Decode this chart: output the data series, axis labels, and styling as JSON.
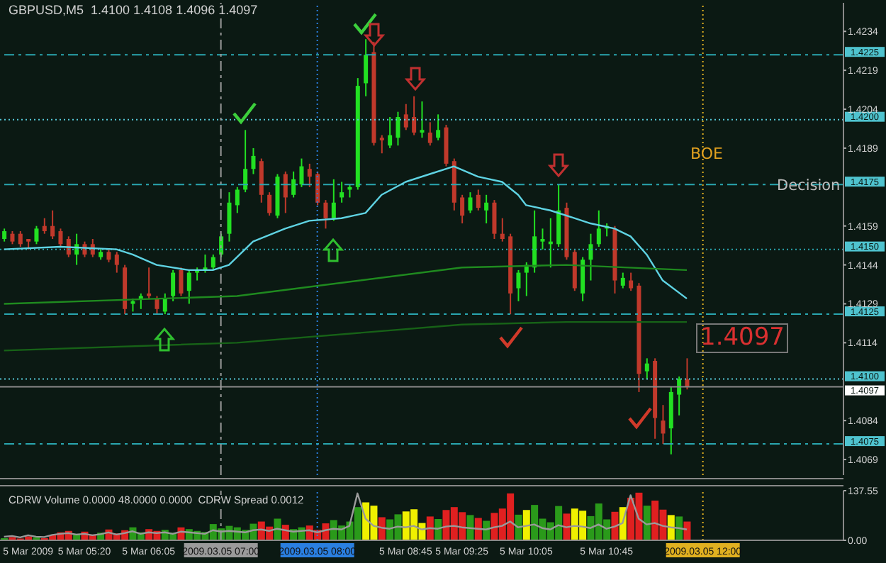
{
  "chart_data": [
    {
      "type": "candlestick",
      "title": "GBPUSD,M5  1.4100 1.4108 1.4096 1.4097",
      "categories": [
        null,
        null,
        null,
        "5 Mar 2009",
        null,
        null,
        null,
        null,
        null,
        null,
        "5 Mar 05:20",
        null,
        null,
        null,
        null,
        null,
        null,
        null,
        "5 Mar 06:05",
        null,
        null,
        null,
        null,
        null,
        null,
        null,
        null,
        "2009.03.05 07:00",
        null,
        null,
        null,
        null,
        null,
        null,
        null,
        null,
        null,
        null,
        null,
        "2009.03.05 08:00",
        null,
        null,
        null,
        null,
        null,
        null,
        null,
        null,
        null,
        null,
        "5 Mar 08:45",
        null,
        null,
        null,
        null,
        null,
        null,
        "5 Mar 09:25",
        null,
        null,
        null,
        null,
        null,
        null,
        null,
        "5 Mar 10:05",
        null,
        null,
        null,
        null,
        null,
        null,
        null,
        null,
        null,
        "5 Mar 10:45",
        null,
        null,
        null,
        null,
        null,
        null,
        null,
        null,
        null,
        null,
        null,
        "2009.03.05 12:00",
        null,
        null,
        null,
        null,
        null,
        null,
        null,
        null,
        null,
        null,
        null,
        null,
        null,
        null,
        null,
        null,
        null
      ],
      "ohlc": [
        [
          1.4154,
          1.4158,
          1.4153,
          1.4157
        ],
        [
          1.4156,
          1.4157,
          1.4152,
          1.4153
        ],
        [
          1.4156,
          1.4157,
          1.4151,
          1.4152
        ],
        [
          1.4154,
          1.4154,
          1.415,
          1.4153
        ],
        [
          1.4153,
          1.4159,
          1.4152,
          1.4158
        ],
        [
          1.4159,
          1.4162,
          1.4156,
          1.4157
        ],
        [
          1.4159,
          1.4165,
          1.4154,
          1.4155
        ],
        [
          1.4157,
          1.4158,
          1.4151,
          1.4152
        ],
        [
          1.4154,
          1.4155,
          1.4147,
          1.4148
        ],
        [
          1.4148,
          1.4156,
          1.4144,
          1.4152
        ],
        [
          1.4152,
          1.4153,
          1.4147,
          1.4148
        ],
        [
          1.4152,
          1.4154,
          1.4147,
          1.4148
        ],
        [
          1.4147,
          1.415,
          1.4146,
          1.4149
        ],
        [
          1.4149,
          1.415,
          1.4145,
          1.4146
        ],
        [
          1.4148,
          1.4149,
          1.4141,
          1.4144
        ],
        [
          1.4143,
          1.4144,
          1.4125,
          1.4127
        ],
        [
          1.4129,
          1.4131,
          1.4126,
          1.413
        ],
        [
          1.4131,
          1.4133,
          1.4127,
          1.4132
        ],
        [
          1.4133,
          1.4143,
          1.4131,
          1.4132
        ],
        [
          1.4131,
          1.4132,
          1.4125,
          1.4127
        ],
        [
          1.4126,
          1.4133,
          1.4125,
          1.4131
        ],
        [
          1.4132,
          1.4142,
          1.413,
          1.4141
        ],
        [
          1.4142,
          1.4143,
          1.4132,
          1.4133
        ],
        [
          1.4134,
          1.4142,
          1.4129,
          1.4141
        ],
        [
          1.4141,
          1.4143,
          1.4138,
          1.4142
        ],
        [
          1.4142,
          1.4148,
          1.4141,
          1.4143
        ],
        [
          1.4143,
          1.4148,
          1.4142,
          1.4147
        ],
        [
          1.4148,
          1.4156,
          1.4147,
          1.4155
        ],
        [
          1.4156,
          1.4172,
          1.4153,
          1.4168
        ],
        [
          1.4167,
          1.4174,
          1.4164,
          1.4173
        ],
        [
          1.4173,
          1.4196,
          1.4172,
          1.4181
        ],
        [
          1.4181,
          1.4189,
          1.4179,
          1.4186
        ],
        [
          1.4184,
          1.4185,
          1.4168,
          1.4171
        ],
        [
          1.4171,
          1.4172,
          1.4163,
          1.4164
        ],
        [
          1.4163,
          1.4179,
          1.4162,
          1.4178
        ],
        [
          1.4179,
          1.418,
          1.4164,
          1.417
        ],
        [
          1.4171,
          1.418,
          1.417,
          1.4177
        ],
        [
          1.4175,
          1.4185,
          1.4174,
          1.4182
        ],
        [
          1.4181,
          1.4183,
          1.4174,
          1.4178
        ],
        [
          1.4179,
          1.418,
          1.4167,
          1.4168
        ],
        [
          1.4168,
          1.4169,
          1.4158,
          1.4162
        ],
        [
          1.4162,
          1.4177,
          1.4161,
          1.4168
        ],
        [
          1.417,
          1.4176,
          1.4168,
          1.4172
        ],
        [
          1.4173,
          1.4175,
          1.417,
          1.4174
        ],
        [
          1.4174,
          1.4216,
          1.4173,
          1.4213
        ],
        [
          1.4214,
          1.4231,
          1.4209,
          1.4225
        ],
        [
          1.4226,
          1.423,
          1.419,
          1.4191
        ],
        [
          1.4193,
          1.4194,
          1.4187,
          1.4192
        ],
        [
          1.419,
          1.4201,
          1.4189,
          1.4194
        ],
        [
          1.4193,
          1.4203,
          1.419,
          1.4201
        ],
        [
          1.4202,
          1.4206,
          1.4196,
          1.4197
        ],
        [
          1.4201,
          1.4209,
          1.4194,
          1.4195
        ],
        [
          1.4195,
          1.4207,
          1.4193,
          1.4196
        ],
        [
          1.4195,
          1.4199,
          1.419,
          1.4191
        ],
        [
          1.4193,
          1.4202,
          1.4192,
          1.4196
        ],
        [
          1.4197,
          1.4198,
          1.4182,
          1.4183
        ],
        [
          1.4184,
          1.4185,
          1.4165,
          1.4168
        ],
        [
          1.417,
          1.4171,
          1.416,
          1.4163
        ],
        [
          1.4165,
          1.4172,
          1.4164,
          1.417
        ],
        [
          1.4171,
          1.4173,
          1.4165,
          1.4166
        ],
        [
          1.4165,
          1.4171,
          1.416,
          1.4168
        ],
        [
          1.4168,
          1.4169,
          1.4154,
          1.4156
        ],
        [
          1.4156,
          1.4162,
          1.4153,
          1.4154
        ],
        [
          1.4155,
          1.4156,
          1.4125,
          1.4133
        ],
        [
          1.4135,
          1.4142,
          1.413,
          1.4141
        ],
        [
          1.4141,
          1.4145,
          1.4132,
          1.4144
        ],
        [
          1.4143,
          1.4165,
          1.4141,
          1.4155
        ],
        [
          1.4153,
          1.4158,
          1.415,
          1.4154
        ],
        [
          1.4152,
          1.4162,
          1.4143,
          1.4153
        ],
        [
          1.4152,
          1.4175,
          1.4151,
          1.4165
        ],
        [
          1.4166,
          1.4168,
          1.4146,
          1.4147
        ],
        [
          1.4149,
          1.415,
          1.4134,
          1.4135
        ],
        [
          1.4133,
          1.4147,
          1.413,
          1.4146
        ],
        [
          1.4146,
          1.4156,
          1.4138,
          1.4152
        ],
        [
          1.4152,
          1.4165,
          1.4151,
          1.4158
        ],
        [
          1.4158,
          1.416,
          1.4155,
          1.4159
        ],
        [
          1.4158,
          1.4159,
          1.4133,
          1.4138
        ],
        [
          1.4136,
          1.4141,
          1.4135,
          1.4139
        ],
        [
          1.4138,
          1.4141,
          1.4134,
          1.4135
        ],
        [
          1.4136,
          1.4137,
          1.4095,
          1.4102
        ],
        [
          1.4103,
          1.4108,
          1.41,
          1.4106
        ],
        [
          1.4107,
          1.4108,
          1.4077,
          1.4085
        ],
        [
          1.4084,
          1.409,
          1.4075,
          1.4079
        ],
        [
          1.4081,
          1.4097,
          1.4071,
          1.4095
        ],
        [
          1.4094,
          1.4101,
          1.4086,
          1.41
        ],
        [
          1.41,
          1.4108,
          1.4096,
          1.4097
        ],
        null,
        null,
        null,
        null,
        null,
        null,
        null,
        null,
        null,
        null,
        null,
        null,
        null,
        null,
        null,
        null,
        null,
        null,
        null
      ],
      "colors": [
        "#22e022",
        "#c0392b",
        "#c0392b",
        "#c0392b",
        "#22e022",
        "#c0392b",
        "#c0392b",
        "#c0392b",
        "#c0392b",
        "#22e022",
        "#c0392b",
        "#c0392b",
        "#22e022",
        "#c0392b",
        "#c0392b",
        "#c0392b",
        "#22e022",
        "#22e022",
        "#c0392b",
        "#c0392b",
        "#22e022",
        "#22e022",
        "#c0392b",
        "#22e022",
        "#22e022",
        "#22e022",
        "#22e022",
        "#22e022",
        "#22e022",
        "#22e022",
        "#22e022",
        "#22e022",
        "#c0392b",
        "#c0392b",
        "#22e022",
        "#c0392b",
        "#22e022",
        "#22e022",
        "#c0392b",
        "#c0392b",
        "#c0392b",
        "#22e022",
        "#22e022",
        "#22e022",
        "#22e022",
        "#22e022",
        "#c0392b",
        "#c0392b",
        "#22e022",
        "#22e022",
        "#c0392b",
        "#c0392b",
        "#22e022",
        "#c0392b",
        "#22e022",
        "#c0392b",
        "#c0392b",
        "#c0392b",
        "#22e022",
        "#c0392b",
        "#22e022",
        "#c0392b",
        "#c0392b",
        "#c0392b",
        "#22e022",
        "#22e022",
        "#22e022",
        "#22e022",
        "#22e022",
        "#22e022",
        "#c0392b",
        "#c0392b",
        "#22e022",
        "#22e022",
        "#22e022",
        "#22e022",
        "#c0392b",
        "#22e022",
        "#c0392b",
        "#c0392b",
        "#22e022",
        "#c0392b",
        "#c0392b",
        "#22e022",
        "#22e022",
        "#c0392b",
        null,
        null,
        null,
        null,
        null,
        null,
        null,
        null,
        null,
        null,
        null,
        null,
        null,
        null,
        null,
        null,
        null,
        null,
        null
      ],
      "series": [
        {
          "type": "line",
          "color": "#5fd3e3",
          "values": [
            1.415,
            null,
            null,
            null,
            null,
            null,
            null,
            1.4151,
            null,
            null,
            null,
            null,
            null,
            null,
            1.415,
            null,
            1.4148,
            null,
            null,
            1.4144,
            null,
            null,
            null,
            1.4142,
            null,
            null,
            1.4142,
            null,
            1.4144,
            null,
            null,
            1.4153,
            null,
            null,
            null,
            1.4158,
            null,
            null,
            1.4161,
            null,
            null,
            null,
            1.4162,
            null,
            null,
            1.4164,
            null,
            1.4171,
            null,
            null,
            1.4176,
            null,
            null,
            1.4179,
            null,
            null,
            1.4182,
            null,
            null,
            1.4178,
            null,
            null,
            1.4176,
            null,
            1.4171,
            1.4167,
            null,
            null,
            1.4165,
            null,
            null,
            1.4162,
            null,
            1.416,
            null,
            null,
            1.4158,
            null,
            1.4155,
            null,
            1.4148,
            null,
            1.4138,
            null,
            null,
            1.4131,
            null,
            null,
            null,
            null,
            null,
            null,
            null,
            null,
            null,
            null,
            null,
            null,
            null,
            null,
            null,
            null,
            null,
            null,
            null
          ]
        },
        {
          "type": "line",
          "color": "#1f8a1f",
          "values": [
            1.4129,
            null,
            null,
            null,
            null,
            null,
            null,
            null,
            null,
            null,
            null,
            null,
            null,
            null,
            null,
            null,
            null,
            null,
            null,
            null,
            null,
            null,
            null,
            null,
            null,
            null,
            null,
            null,
            null,
            1.4132,
            null,
            null,
            null,
            null,
            null,
            null,
            null,
            null,
            null,
            null,
            null,
            null,
            null,
            null,
            null,
            null,
            null,
            null,
            null,
            null,
            null,
            null,
            null,
            null,
            null,
            null,
            null,
            1.4143,
            null,
            null,
            null,
            null,
            null,
            null,
            null,
            null,
            null,
            null,
            null,
            null,
            1.4144,
            null,
            null,
            null,
            null,
            null,
            null,
            null,
            null,
            null,
            null,
            null,
            null,
            null,
            null,
            1.4142,
            null,
            null,
            null,
            null,
            null,
            null,
            null,
            null,
            null,
            null,
            null,
            null,
            null,
            null,
            null,
            null,
            null,
            null,
            null
          ]
        },
        {
          "type": "line",
          "color": "#176217",
          "values": [
            1.4111,
            null,
            null,
            null,
            null,
            null,
            null,
            null,
            null,
            null,
            null,
            null,
            null,
            null,
            null,
            null,
            null,
            null,
            null,
            null,
            null,
            null,
            null,
            null,
            null,
            null,
            null,
            null,
            null,
            1.4114,
            null,
            null,
            null,
            null,
            null,
            null,
            null,
            null,
            null,
            null,
            null,
            null,
            null,
            null,
            null,
            null,
            null,
            null,
            null,
            null,
            null,
            null,
            null,
            null,
            null,
            null,
            null,
            1.4121,
            null,
            null,
            null,
            null,
            null,
            null,
            null,
            null,
            null,
            null,
            null,
            null,
            1.4122,
            null,
            null,
            null,
            null,
            null,
            null,
            null,
            null,
            null,
            null,
            null,
            null,
            null,
            null,
            1.4122,
            null,
            null,
            null,
            null,
            null,
            null,
            null,
            null,
            null,
            null,
            null,
            null,
            null,
            null,
            null,
            null,
            null,
            null,
            null
          ]
        }
      ],
      "ylim": [
        1.4063,
        1.4245
      ],
      "yticks": [
        1.4234,
        1.4219,
        1.4204,
        1.4189,
        1.4159,
        1.4144,
        1.4129,
        1.4114,
        1.4084,
        1.4069
      ],
      "tick_labels": "y",
      "ref_lines": [
        {
          "axis": "y",
          "value": 1.4225,
          "label": "1.4225",
          "color": "#2aa6b0",
          "line_style": "dashed"
        },
        {
          "axis": "y",
          "value": 1.42,
          "label": "1.4200",
          "color": "#56c8d8",
          "line_style": "dotted"
        },
        {
          "axis": "y",
          "value": 1.4175,
          "label": "1.4175",
          "color": "#2aa6b0",
          "line_style": "dashed"
        },
        {
          "axis": "y",
          "value": 1.415,
          "label": "1.4150",
          "color": "#2aa6b0",
          "line_style": "dotted"
        },
        {
          "axis": "y",
          "value": 1.4125,
          "label": "1.4125",
          "color": "#2aa6b0",
          "line_style": "dashed"
        },
        {
          "axis": "y",
          "value": 1.41,
          "label": "1.4100",
          "color": "#56c8d8",
          "line_style": "dotted"
        },
        {
          "axis": "y",
          "value": 1.4075,
          "label": "1.4075",
          "color": "#2aa6b0",
          "line_style": "dashed"
        },
        {
          "axis": "y",
          "value": 1.4097,
          "label": "1.4097",
          "color": "#8a8a8a",
          "line_style": "solid"
        },
        {
          "axis": "x",
          "value": "2009.03.05 07:00",
          "color": "#9a9a9a",
          "line_style": "dashed"
        },
        {
          "axis": "x",
          "value": "2009.03.05 08:00",
          "color": "#2a7fe0",
          "line_style": "dotted"
        },
        {
          "axis": "x",
          "value": "2009.03.05 12:00",
          "color": "#e0b020",
          "line_style": "dotted"
        }
      ],
      "annotations": [
        "BOE",
        "Decision",
        "1.4097"
      ]
    },
    {
      "type": "bar",
      "title": "CDRW Volume 0.0000 48.0000 0.0000  CDRW Spread 0.0012",
      "categories": [
        null,
        null,
        null,
        "5 Mar 2009",
        null,
        null,
        null,
        null,
        null,
        null,
        "5 Mar 05:20",
        null,
        null,
        null,
        null,
        null,
        null,
        null,
        "5 Mar 06:05",
        null,
        null,
        null,
        null,
        null,
        null,
        null,
        null,
        "2009.03.05 07:00",
        null,
        null,
        null,
        null,
        null,
        null,
        null,
        null,
        null,
        null,
        null,
        "2009.03.05 08:00",
        null,
        null,
        null,
        null,
        null,
        null,
        null,
        null,
        null,
        null,
        "5 Mar 08:45",
        null,
        null,
        null,
        null,
        null,
        null,
        "5 Mar 09:25",
        null,
        null,
        null,
        null,
        null,
        null,
        null,
        "5 Mar 10:05",
        null,
        null,
        null,
        null,
        null,
        null,
        null,
        null,
        null,
        "5 Mar 10:45",
        null,
        null,
        null,
        null,
        null,
        null,
        null,
        null,
        null,
        null,
        null,
        "2009.03.05 12:00",
        null,
        null,
        null,
        null,
        null,
        null,
        null,
        null,
        null,
        null,
        null,
        null,
        null,
        null,
        null,
        null,
        null
      ],
      "series": [
        {
          "type": "bar",
          "colors": [
            "#2a9a1a",
            "#e02020",
            "#e02020",
            "#e02020",
            "#2a9a1a",
            "#e02020",
            "#e02020",
            "#e02020",
            "#e02020",
            "#2a9a1a",
            "#e02020",
            "#e02020",
            "#2a9a1a",
            "#e02020",
            "#e02020",
            "#e02020",
            "#2a9a1a",
            "#2a9a1a",
            "#e02020",
            "#e02020",
            "#2a9a1a",
            "#2a9a1a",
            "#e02020",
            "#2a9a1a",
            "#2a9a1a",
            "#2a9a1a",
            "#2a9a1a",
            "#2a9a1a",
            "#2a9a1a",
            "#2a9a1a",
            "#2a9a1a",
            "#2a9a1a",
            "#e02020",
            "#e02020",
            "#2a9a1a",
            "#e02020",
            "#2a9a1a",
            "#2a9a1a",
            "#e02020",
            "#e02020",
            "#e02020",
            "#2a9a1a",
            "#2a9a1a",
            "#2a9a1a",
            "#2a9a1a",
            "#f0f000",
            "#f0f000",
            "#e02020",
            "#2a9a1a",
            "#2a9a1a",
            "#f0f000",
            "#f0f000",
            "#f0f000",
            "#e02020",
            "#2a9a1a",
            "#e02020",
            "#e02020",
            "#e02020",
            "#2a9a1a",
            "#e02020",
            "#2a9a1a",
            "#e02020",
            "#e02020",
            "#e02020",
            "#2a9a1a",
            "#f0f000",
            "#2a9a1a",
            "#2a9a1a",
            "#2a9a1a",
            "#2a9a1a",
            "#e02020",
            "#f0f000",
            "#f0f000",
            "#2a9a1a",
            "#2a9a1a",
            "#2a9a1a",
            "#e02020",
            "#f0f000",
            "#e02020",
            "#e02020",
            "#2a9a1a",
            "#e02020",
            "#e02020",
            "#f0f000",
            "#2a9a1a",
            "#e02020",
            null,
            null,
            null,
            null,
            null,
            null,
            null,
            null,
            null,
            null,
            null,
            null,
            null,
            null,
            null,
            null,
            null,
            null,
            null
          ],
          "values": [
            6,
            9,
            5,
            11,
            8,
            6,
            14,
            22,
            26,
            18,
            24,
            16,
            21,
            30,
            19,
            28,
            36,
            22,
            31,
            26,
            29,
            21,
            36,
            31,
            26,
            23,
            45,
            33,
            40,
            36,
            29,
            46,
            52,
            38,
            60,
            43,
            31,
            36,
            41,
            29,
            47,
            56,
            41,
            52,
            92,
            105,
            96,
            64,
            58,
            72,
            80,
            86,
            48,
            66,
            59,
            84,
            92,
            78,
            70,
            62,
            54,
            76,
            88,
            130,
            71,
            84,
            98,
            60,
            50,
            95,
            74,
            88,
            82,
            67,
            102,
            58,
            79,
            92,
            118,
            132,
            96,
            110,
            85,
            70,
            66,
            52,
            null,
            null,
            null,
            null,
            null,
            null,
            null,
            null,
            null,
            null,
            null,
            null,
            null,
            null,
            null,
            null,
            null,
            null,
            null
          ]
        },
        {
          "type": "line",
          "color": "#9a9a9a",
          "values": [
            10,
            12,
            8,
            14,
            10,
            9,
            15,
            18,
            20,
            16,
            18,
            14,
            17,
            22,
            16,
            20,
            25,
            18,
            22,
            20,
            22,
            18,
            24,
            22,
            20,
            18,
            28,
            24,
            26,
            24,
            22,
            28,
            30,
            26,
            32,
            28,
            24,
            26,
            28,
            22,
            28,
            32,
            30,
            40,
            130,
            60,
            40,
            35,
            32,
            38,
            36,
            40,
            30,
            34,
            32,
            38,
            40,
            36,
            34,
            32,
            30,
            36,
            40,
            52,
            36,
            40,
            44,
            34,
            30,
            42,
            36,
            40,
            38,
            34,
            44,
            32,
            38,
            48,
            125,
            60,
            44,
            48,
            40,
            36,
            34,
            30,
            null,
            null,
            null,
            null,
            null,
            null,
            null,
            null,
            null,
            null,
            null,
            null,
            null,
            null,
            null,
            null,
            null,
            null,
            null
          ]
        }
      ],
      "ylim": [
        0,
        137.55
      ],
      "yticks": [
        {
          "value": 0,
          "label": "0.00"
        },
        137.55
      ],
      "ref_lines": [
        {
          "axis": "x",
          "value": "2009.03.05 07:00",
          "color": "#9a9a9a",
          "line_style": "dashed"
        },
        {
          "axis": "x",
          "value": "2009.03.05 08:00",
          "color": "#2a7fe0",
          "line_style": "dotted"
        },
        {
          "axis": "x",
          "value": "2009.03.05 12:00",
          "color": "#e0b020",
          "line_style": "dotted"
        }
      ]
    }
  ]
}
